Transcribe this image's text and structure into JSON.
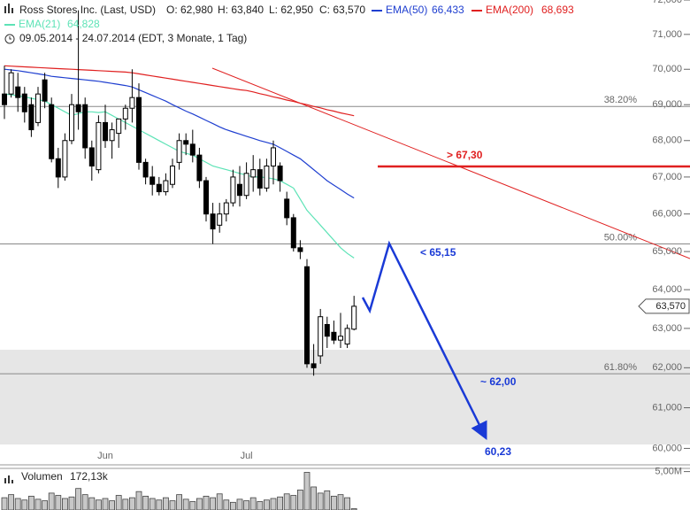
{
  "chart_data": {
    "type": "candlestick",
    "title": "Ross Stores Inc. (Last, USD)",
    "ohlc_labels": [
      "O: 62,980",
      "H: 63,840",
      "L: 62,950",
      "C: 63,570"
    ],
    "period": "09.05.2014 - 24.07.2014 (EDT, 3 Monate, 1 Tag)",
    "log_scale": true,
    "categories": [
      null,
      null,
      null,
      null,
      null,
      null,
      null,
      null,
      null,
      null,
      null,
      null,
      null,
      null,
      null,
      "Jun",
      null,
      null,
      null,
      null,
      null,
      null,
      null,
      null,
      null,
      null,
      null,
      null,
      null,
      null,
      null,
      null,
      null,
      null,
      null,
      null,
      "Jul",
      null,
      null,
      null,
      null,
      null,
      null,
      null,
      null,
      null,
      null,
      null,
      null,
      null,
      null,
      null,
      null
    ],
    "open": [
      69.3,
      69.3,
      69.5,
      69.3,
      69.0,
      68.5,
      69.7,
      69.0,
      67.5,
      67.0,
      68.0,
      69.0,
      69.0,
      67.8,
      67.2,
      68.5,
      68.0,
      68.2,
      68.6,
      68.9,
      69.2,
      67.4,
      67.0,
      66.8,
      66.6,
      66.8,
      67.4,
      68.0,
      67.9,
      67.6,
      66.9,
      66.0,
      65.7,
      66.0,
      66.3,
      66.8,
      66.5,
      67.0,
      67.2,
      66.7,
      67.3,
      67.3,
      66.4,
      65.9,
      65.1,
      64.6,
      62.1,
      62.3,
      63.1,
      62.9,
      62.7,
      62.6,
      62.98
    ],
    "high": [
      70.1,
      70.0,
      69.9,
      69.5,
      69.2,
      69.5,
      69.9,
      69.2,
      67.8,
      68.2,
      69.3,
      71.7,
      69.2,
      68.0,
      68.7,
      69.0,
      68.5,
      68.6,
      69.0,
      70.0,
      69.6,
      67.5,
      67.3,
      67.0,
      67.1,
      67.5,
      68.2,
      68.2,
      68.3,
      67.8,
      67.0,
      66.3,
      66.3,
      66.4,
      67.2,
      67.3,
      67.4,
      67.6,
      67.5,
      67.5,
      68.0,
      67.4,
      66.6,
      66.0,
      65.3,
      64.8,
      62.6,
      63.5,
      63.3,
      63.2,
      63.4,
      63.1,
      63.84
    ],
    "low": [
      68.6,
      69.2,
      68.8,
      68.5,
      68.1,
      68.4,
      68.9,
      67.4,
      66.7,
      66.9,
      67.9,
      68.3,
      67.5,
      66.9,
      67.1,
      67.8,
      67.5,
      67.8,
      68.3,
      68.5,
      67.2,
      66.8,
      66.5,
      66.5,
      66.5,
      66.7,
      67.2,
      67.6,
      67.4,
      66.7,
      65.8,
      65.2,
      65.5,
      65.8,
      66.2,
      66.2,
      66.4,
      66.6,
      66.5,
      66.6,
      66.8,
      66.6,
      65.7,
      65.0,
      64.8,
      62.0,
      61.8,
      62.1,
      62.5,
      62.6,
      62.5,
      62.5,
      62.95
    ],
    "close": [
      69.0,
      69.9,
      69.2,
      68.8,
      68.3,
      69.3,
      69.1,
      67.5,
      67.0,
      68.0,
      69.0,
      68.8,
      67.8,
      67.3,
      68.5,
      68.0,
      68.3,
      68.6,
      68.9,
      69.2,
      67.4,
      67.0,
      66.8,
      66.6,
      66.9,
      67.3,
      68.0,
      67.9,
      67.6,
      66.9,
      66.0,
      65.6,
      66.0,
      66.3,
      67.0,
      66.5,
      67.1,
      67.2,
      66.7,
      67.3,
      67.8,
      66.9,
      65.9,
      65.1,
      65.0,
      62.1,
      62.0,
      63.3,
      62.8,
      62.7,
      62.8,
      63.0,
      63.57
    ],
    "last_price_label": "63,570",
    "series": [
      {
        "name": "EMA(50)",
        "color": "#1f3fd0",
        "last_label": "66,433",
        "values": [
          70.0,
          69.98,
          69.96,
          69.93,
          69.9,
          69.87,
          69.84,
          69.8,
          69.78,
          69.76,
          69.74,
          69.72,
          69.7,
          69.68,
          69.66,
          69.63,
          69.6,
          69.57,
          69.54,
          69.5,
          69.42,
          69.34,
          69.26,
          69.18,
          69.1,
          69.0,
          68.91,
          68.82,
          68.74,
          68.65,
          68.56,
          68.47,
          68.38,
          68.3,
          68.24,
          68.18,
          68.12,
          68.06,
          68.0,
          67.95,
          67.9,
          67.8,
          67.7,
          67.6,
          67.5,
          67.35,
          67.2,
          67.05,
          66.9,
          66.78,
          66.66,
          66.54,
          66.43
        ]
      },
      {
        "name": "EMA(200)",
        "color": "#e02020",
        "last_label": "68,693",
        "values": [
          70.1,
          70.09,
          70.08,
          70.07,
          70.06,
          70.05,
          70.04,
          70.03,
          70.02,
          70.01,
          70.0,
          69.99,
          69.98,
          69.97,
          69.96,
          69.95,
          69.94,
          69.93,
          69.92,
          69.9,
          69.87,
          69.84,
          69.81,
          69.78,
          69.75,
          69.72,
          69.69,
          69.66,
          69.63,
          69.6,
          69.57,
          69.54,
          69.51,
          69.48,
          69.45,
          69.42,
          69.4,
          69.36,
          69.31,
          69.27,
          69.22,
          69.18,
          69.13,
          69.09,
          69.04,
          69.0,
          68.95,
          68.91,
          68.86,
          68.82,
          68.77,
          68.73,
          68.69
        ]
      },
      {
        "name": "EMA(21)",
        "color": "#5de3b6",
        "last_label": "64,828",
        "values": [
          69.3,
          69.28,
          69.25,
          69.22,
          69.18,
          69.14,
          69.1,
          69.0,
          68.9,
          68.8,
          68.7,
          68.75,
          68.8,
          68.8,
          68.78,
          68.8,
          68.7,
          68.6,
          68.5,
          68.4,
          68.3,
          68.2,
          68.1,
          68.0,
          67.9,
          67.8,
          67.7,
          67.65,
          67.6,
          67.5,
          67.4,
          67.3,
          67.25,
          67.2,
          67.15,
          67.1,
          67.05,
          67.0,
          67.0,
          66.98,
          66.95,
          66.9,
          66.8,
          66.7,
          66.4,
          66.1,
          65.9,
          65.7,
          65.5,
          65.3,
          65.1,
          64.95,
          64.83
        ]
      }
    ],
    "ylim": [
      59.6,
      72.0
    ],
    "yticks": [
      {
        "value": 60,
        "label": "60,000"
      },
      {
        "value": 61,
        "label": "61,000"
      },
      {
        "value": 62,
        "label": "62,000"
      },
      {
        "value": 63,
        "label": "63,000"
      },
      {
        "value": 64,
        "label": "64,000"
      },
      {
        "value": 65,
        "label": "65,000"
      },
      {
        "value": 66,
        "label": "66,000"
      },
      {
        "value": 67,
        "label": "67,000"
      },
      {
        "value": 68,
        "label": "68,000"
      },
      {
        "value": 69,
        "label": "69,000"
      },
      {
        "value": 70,
        "label": "70,000"
      },
      {
        "value": 71,
        "label": "71,000"
      },
      {
        "value": 72,
        "label": "72,000"
      }
    ],
    "fib_levels": [
      {
        "value": 68.95,
        "label": "38.20%"
      },
      {
        "value": 65.2,
        "label": "50.00%"
      },
      {
        "value": 61.85,
        "label": "61.80%"
      }
    ],
    "annotations": [
      "> 67,30",
      "< 65,15",
      "~ 62,00",
      "60,23"
    ],
    "volume": {
      "name": "Volumen",
      "last_label": "172,13k",
      "ylim": [
        0,
        5.3
      ],
      "yticks": [
        {
          "value": 5,
          "label": "5,00M"
        }
      ],
      "values": [
        1.6,
        2.0,
        1.5,
        1.3,
        1.8,
        1.4,
        1.2,
        2.2,
        1.9,
        1.5,
        1.7,
        2.8,
        2.0,
        1.6,
        1.3,
        1.5,
        1.2,
        1.9,
        1.4,
        1.6,
        2.4,
        1.8,
        1.5,
        1.3,
        1.6,
        1.2,
        2.0,
        1.4,
        1.1,
        1.5,
        1.8,
        1.6,
        2.1,
        1.3,
        1.0,
        1.4,
        1.2,
        1.6,
        1.1,
        1.3,
        1.5,
        1.7,
        2.1,
        1.9,
        2.6,
        4.9,
        3.0,
        2.2,
        2.5,
        1.8,
        2.0,
        1.6,
        0.17213
      ]
    }
  }
}
